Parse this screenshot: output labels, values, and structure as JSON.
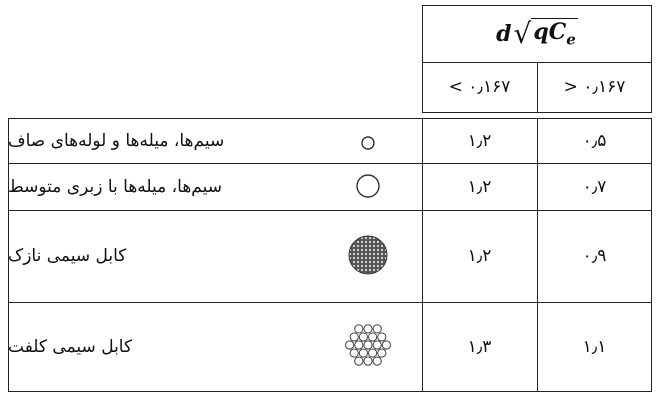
{
  "header": {
    "formula": {
      "d": "d",
      "radicand": "qC",
      "subscript": "e"
    },
    "columns": [
      "< ۰٫۱۶۷",
      "> ۰٫۱۶۷"
    ]
  },
  "table": {
    "rows": [
      {
        "label": "سیم‌ها، میله‌ها و لوله‌های صاف",
        "values": [
          "۱٫۲",
          "۰٫۵"
        ]
      },
      {
        "label": "سیم‌ها، میله‌ها با زبری متوسط",
        "values": [
          "۱٫۲",
          "۰٫۷"
        ]
      },
      {
        "label": "کابل سیمی نازک",
        "values": [
          "۱٫۲",
          "۰٫۹"
        ]
      },
      {
        "label": "کابل سیمی کلفت",
        "values": [
          "۱٫۳",
          "۱٫۱"
        ]
      }
    ]
  }
}
